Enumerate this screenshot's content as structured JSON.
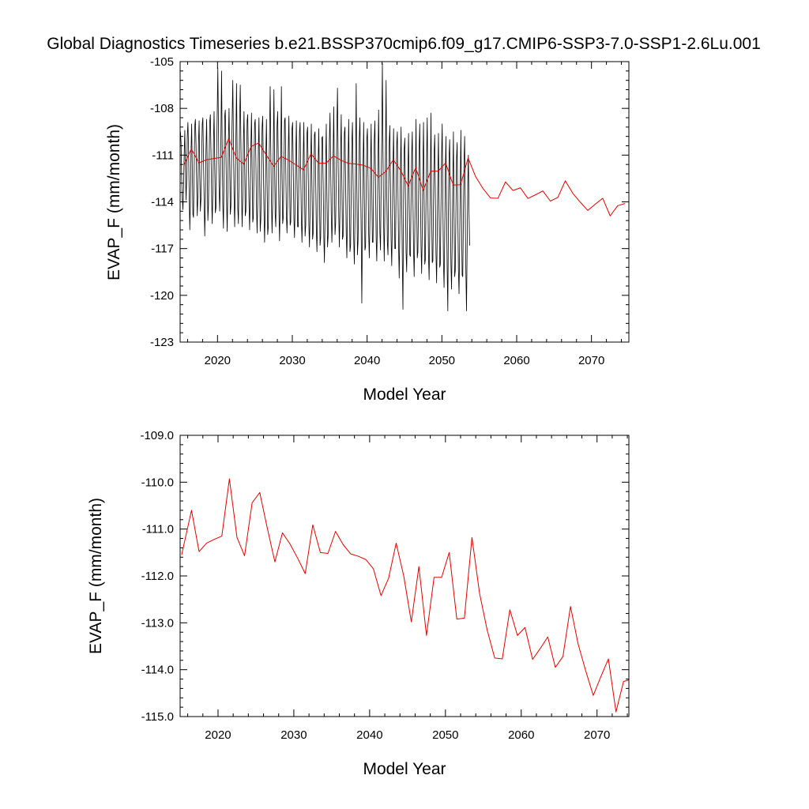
{
  "title": "Global Diagnostics Timeseries b.e21.BSSP370cmip6.f09_g17.CMIP6-SSP3-7.0-SSP1-2.6Lu.001",
  "colors": {
    "monthly": "#000000",
    "annual": "#e60000",
    "axes": "#000000",
    "background": "#ffffff"
  },
  "chart_data": [
    {
      "type": "line",
      "xlabel": "Model Year",
      "ylabel": "EVAP_F (mm/month)",
      "xlim": [
        2015,
        2075
      ],
      "ylim": [
        -123,
        -105
      ],
      "x_ticks": [
        2020,
        2030,
        2040,
        2050,
        2060,
        2070
      ],
      "x_tick_labels": [
        "2020",
        "2030",
        "2040",
        "2050",
        "2060",
        "2070"
      ],
      "y_ticks": [
        -123,
        -120,
        -117,
        -114,
        -111,
        -108,
        -105
      ],
      "y_tick_labels": [
        "-123",
        "-120",
        "-117",
        "-114",
        "-111",
        "-108",
        "-105"
      ],
      "grid": false,
      "legend": "none",
      "series": [
        {
          "style": "monthly",
          "x_start": 2015,
          "x_step": 0.0833333,
          "values": [
            -109.5,
            -110.2,
            -112.5,
            -113.8,
            -114.5,
            -113.2,
            -111.0,
            -109.4,
            -111.8,
            -113.9,
            -112.6,
            -109.8,
            -108.9,
            -110.6,
            -113.4,
            -115.8,
            -114.0,
            -110.8,
            -109.0,
            -111.9,
            -114.8,
            -115.0,
            -112.0,
            -109.1,
            -108.7,
            -110.3,
            -113.0,
            -114.9,
            -113.6,
            -110.2,
            -108.8,
            -112.4,
            -114.6,
            -113.8,
            -111.3,
            -109.0,
            -108.6,
            -111.2,
            -113.9,
            -116.2,
            -114.1,
            -110.6,
            -108.7,
            -111.8,
            -115.2,
            -114.2,
            -111.4,
            -108.9,
            -108.4,
            -110.8,
            -113.6,
            -115.4,
            -113.3,
            -110.2,
            -108.2,
            -111.6,
            -114.7,
            -114.4,
            -111.1,
            -108.3,
            -105.4,
            -109.2,
            -113.0,
            -114.6,
            -112.8,
            -109.7,
            -105.6,
            -110.6,
            -114.2,
            -115.7,
            -112.2,
            -108.5,
            -108.1,
            -110.9,
            -113.8,
            -115.9,
            -113.4,
            -110.0,
            -108.0,
            -111.5,
            -114.8,
            -114.3,
            -111.2,
            -108.6,
            -106.2,
            -109.9,
            -113.5,
            -115.6,
            -113.0,
            -109.8,
            -106.4,
            -110.9,
            -114.4,
            -115.4,
            -112.5,
            -108.7,
            -106.5,
            -110.2,
            -113.4,
            -115.6,
            -113.8,
            -110.2,
            -108.2,
            -111.6,
            -114.9,
            -114.6,
            -111.6,
            -108.8,
            -108.4,
            -111.2,
            -114.0,
            -115.8,
            -113.7,
            -110.5,
            -108.3,
            -111.8,
            -115.3,
            -115.0,
            -111.9,
            -109.0,
            -108.7,
            -111.3,
            -114.2,
            -116.0,
            -114.0,
            -110.7,
            -108.6,
            -112.4,
            -115.9,
            -115.1,
            -112.2,
            -109.2,
            -108.5,
            -111.5,
            -114.5,
            -116.6,
            -114.5,
            -111.0,
            -108.7,
            -112.6,
            -116.1,
            -115.6,
            -112.6,
            -109.6,
            -106.6,
            -110.8,
            -113.9,
            -116.0,
            -114.1,
            -110.6,
            -106.8,
            -111.5,
            -114.8,
            -115.6,
            -112.4,
            -109.1,
            -108.2,
            -111.3,
            -114.5,
            -116.5,
            -114.3,
            -110.7,
            -106.6,
            -112.0,
            -115.4,
            -115.0,
            -112.2,
            -108.8,
            -108.6,
            -111.8,
            -114.9,
            -116.0,
            -114.1,
            -110.8,
            -108.5,
            -112.2,
            -115.5,
            -115.3,
            -112.3,
            -109.3,
            -108.9,
            -111.9,
            -115.0,
            -116.3,
            -114.3,
            -111.0,
            -108.8,
            -112.5,
            -115.6,
            -115.6,
            -112.5,
            -109.5,
            -108.9,
            -112.0,
            -115.1,
            -116.6,
            -114.5,
            -111.1,
            -108.9,
            -112.9,
            -116.2,
            -115.5,
            -112.6,
            -109.6,
            -109.2,
            -112.2,
            -115.4,
            -116.9,
            -114.7,
            -111.3,
            -109.0,
            -113.0,
            -116.4,
            -116.0,
            -112.8,
            -109.7,
            -109.5,
            -112.4,
            -115.7,
            -117.2,
            -114.9,
            -111.5,
            -109.3,
            -113.2,
            -116.8,
            -116.3,
            -113.0,
            -109.9,
            -109.8,
            -112.9,
            -116.2,
            -117.9,
            -115.1,
            -111.5,
            -109.0,
            -113.8,
            -116.9,
            -116.2,
            -113.3,
            -110.0,
            -108.3,
            -111.6,
            -114.8,
            -116.6,
            -114.8,
            -111.0,
            -107.9,
            -112.6,
            -116.1,
            -115.4,
            -112.4,
            -109.1,
            -106.7,
            -111.4,
            -114.8,
            -116.9,
            -114.4,
            -110.7,
            -108.4,
            -113.0,
            -116.4,
            -116.2,
            -113.1,
            -109.6,
            -109.2,
            -112.6,
            -116.0,
            -117.6,
            -115.0,
            -111.4,
            -108.7,
            -113.3,
            -117.2,
            -116.8,
            -113.4,
            -110.2,
            -108.9,
            -112.7,
            -116.4,
            -118.0,
            -115.3,
            -111.6,
            -106.4,
            -113.0,
            -117.4,
            -116.5,
            -113.4,
            -109.9,
            -108.6,
            -112.5,
            -115.9,
            -120.5,
            -115.8,
            -111.7,
            -108.9,
            -113.4,
            -117.1,
            -116.9,
            -113.3,
            -110.0,
            -109.3,
            -112.5,
            -116.0,
            -117.6,
            -115.2,
            -111.6,
            -109.0,
            -113.2,
            -116.6,
            -116.6,
            -113.0,
            -110.0,
            -108.8,
            -112.6,
            -116.3,
            -117.8,
            -115.3,
            -111.3,
            -108.1,
            -112.8,
            -116.0,
            -117.1,
            -113.1,
            -109.8,
            -105.1,
            -110.8,
            -115.4,
            -117.8,
            -114.6,
            -110.7,
            -106.2,
            -113.3,
            -116.6,
            -117.4,
            -113.6,
            -110.2,
            -109.1,
            -113.0,
            -116.4,
            -118.1,
            -115.4,
            -111.7,
            -109.3,
            -113.5,
            -117.0,
            -117.0,
            -113.5,
            -110.3,
            -109.5,
            -113.3,
            -116.8,
            -118.9,
            -115.7,
            -111.8,
            -109.2,
            -113.9,
            -117.8,
            -120.9,
            -114.0,
            -110.6,
            -109.9,
            -113.6,
            -117.2,
            -118.5,
            -115.8,
            -112.0,
            -109.6,
            -114.0,
            -117.4,
            -117.5,
            -114.0,
            -110.9,
            -109.5,
            -113.7,
            -117.0,
            -118.8,
            -116.0,
            -112.2,
            -108.7,
            -113.8,
            -117.6,
            -117.2,
            -113.9,
            -110.6,
            -109.0,
            -113.3,
            -116.8,
            -118.6,
            -115.9,
            -112.0,
            -108.9,
            -113.7,
            -118.0,
            -117.7,
            -114.2,
            -111.0,
            -108.6,
            -113.6,
            -117.4,
            -119.0,
            -116.0,
            -112.2,
            -108.3,
            -114.2,
            -117.9,
            -117.8,
            -114.2,
            -110.9,
            -109.7,
            -113.8,
            -117.3,
            -119.2,
            -116.3,
            -112.4,
            -109.6,
            -114.5,
            -118.2,
            -118.0,
            -114.5,
            -111.0,
            -109.0,
            -113.9,
            -117.8,
            -119.5,
            -116.3,
            -112.2,
            -109.8,
            -114.7,
            -118.4,
            -121.0,
            -114.6,
            -111.1,
            -110.0,
            -114.5,
            -118.0,
            -119.6,
            -116.6,
            -112.7,
            -109.5,
            -115.0,
            -118.8,
            -118.4,
            -114.8,
            -111.2,
            -110.2,
            -114.7,
            -118.3,
            -119.9,
            -116.8,
            -112.6,
            -109.4,
            -114.9,
            -118.7,
            -118.8,
            -114.9,
            -111.4,
            -109.8,
            -114.9,
            -118.5,
            -121.0,
            -116.9,
            -112.9,
            -111.0,
            -114.6,
            -116.8
          ]
        },
        {
          "style": "annual",
          "x": [
            2015.5,
            2016.5,
            2017.5,
            2018.5,
            2019.5,
            2020.5,
            2021.5,
            2022.5,
            2023.5,
            2024.5,
            2025.5,
            2026.5,
            2027.5,
            2028.5,
            2029.5,
            2030.5,
            2031.5,
            2032.5,
            2033.5,
            2034.5,
            2035.5,
            2036.5,
            2037.5,
            2038.5,
            2039.5,
            2040.5,
            2041.5,
            2042.5,
            2043.5,
            2044.5,
            2045.5,
            2046.5,
            2047.5,
            2048.5,
            2049.5,
            2050.5,
            2051.5,
            2052.5,
            2053.5,
            2054.5,
            2055.5,
            2056.5,
            2057.5,
            2058.5,
            2059.5,
            2060.5,
            2061.5,
            2062.5,
            2063.5,
            2064.5,
            2065.5,
            2066.5,
            2067.5,
            2068.5,
            2069.5,
            2070.5,
            2071.5,
            2072.5,
            2073.5,
            2074.5
          ],
          "values": [
            -111.65,
            -110.6,
            -111.5,
            -111.3,
            -111.22,
            -111.15,
            -109.93,
            -111.18,
            -111.58,
            -110.44,
            -110.22,
            -110.98,
            -111.72,
            -111.08,
            -111.32,
            -111.63,
            -111.95,
            -110.91,
            -111.52,
            -111.52,
            -111.05,
            -111.33,
            -111.53,
            -111.57,
            -111.65,
            -111.85,
            -112.42,
            -112.05,
            -111.3,
            -112.0,
            -112.98,
            -111.8,
            -113.27,
            -112.03,
            -112.03,
            -111.5,
            -112.92,
            -112.9,
            -111.18,
            -112.37,
            -113.15,
            -113.75,
            -113.77,
            -112.72,
            -113.27,
            -113.1,
            -113.78,
            -113.55,
            -113.3,
            -113.95,
            -113.72,
            -112.65,
            -113.45,
            -114.02,
            -114.55,
            -114.15,
            -113.77,
            -114.9,
            -114.25,
            -114.1
          ]
        }
      ]
    },
    {
      "type": "line",
      "xlabel": "Model Year",
      "ylabel": "EVAP_F (mm/month)",
      "xlim": [
        2015,
        2074.2
      ],
      "ylim": [
        -115.0,
        -109.0
      ],
      "x_ticks": [
        2020,
        2030,
        2040,
        2050,
        2060,
        2070
      ],
      "x_tick_labels": [
        "2020",
        "2030",
        "2040",
        "2050",
        "2060",
        "2070"
      ],
      "y_ticks": [
        -115.0,
        -114.0,
        -113.0,
        -112.0,
        -111.0,
        -110.0,
        -109.0
      ],
      "y_tick_labels": [
        "-115.0",
        "-114.0",
        "-113.0",
        "-112.0",
        "-111.0",
        "-110.0",
        "-109.0"
      ],
      "grid": false,
      "legend": "none",
      "series": [
        {
          "style": "annual",
          "x": [
            2015.2,
            2016.5,
            2017.5,
            2018.5,
            2019.5,
            2020.5,
            2021.5,
            2022.5,
            2023.5,
            2024.5,
            2025.5,
            2026.5,
            2027.5,
            2028.5,
            2029.5,
            2030.5,
            2031.5,
            2032.5,
            2033.5,
            2034.5,
            2035.5,
            2036.5,
            2037.5,
            2038.5,
            2039.5,
            2040.5,
            2041.5,
            2042.5,
            2043.5,
            2044.5,
            2045.5,
            2046.5,
            2047.5,
            2048.5,
            2049.5,
            2050.5,
            2051.5,
            2052.5,
            2053.5,
            2054.5,
            2055.5,
            2056.5,
            2057.5,
            2058.5,
            2059.5,
            2060.5,
            2061.5,
            2062.5,
            2063.5,
            2064.5,
            2065.5,
            2066.5,
            2067.5,
            2068.5,
            2069.5,
            2070.5,
            2071.5,
            2072.5,
            2073.5,
            2074.2
          ],
          "values": [
            -111.55,
            -110.6,
            -111.48,
            -111.3,
            -111.22,
            -111.15,
            -109.93,
            -111.18,
            -111.57,
            -110.44,
            -110.22,
            -110.98,
            -111.7,
            -111.08,
            -111.32,
            -111.62,
            -111.95,
            -110.91,
            -111.5,
            -111.52,
            -111.05,
            -111.33,
            -111.53,
            -111.58,
            -111.65,
            -111.85,
            -112.42,
            -112.05,
            -111.3,
            -112.0,
            -112.98,
            -111.8,
            -113.27,
            -112.03,
            -112.03,
            -111.5,
            -112.92,
            -112.9,
            -111.18,
            -112.37,
            -113.15,
            -113.75,
            -113.77,
            -112.72,
            -113.27,
            -113.1,
            -113.78,
            -113.55,
            -113.3,
            -113.95,
            -113.72,
            -112.65,
            -113.45,
            -114.02,
            -114.55,
            -114.15,
            -113.77,
            -114.9,
            -114.25,
            -114.22
          ]
        }
      ]
    }
  ]
}
